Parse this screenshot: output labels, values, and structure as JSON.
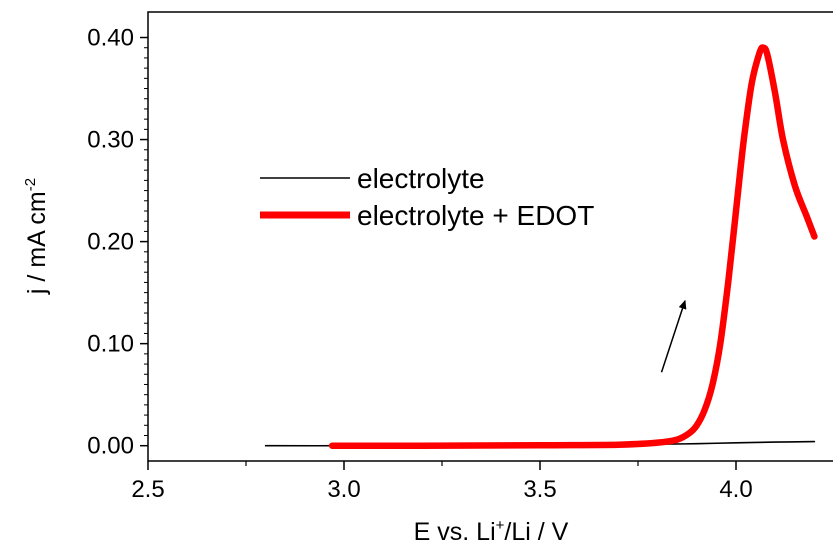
{
  "chart_data": {
    "type": "line",
    "title": "",
    "xlabel": {
      "prefix": "E vs. Li",
      "sup": "+",
      "suffix": "/Li / V"
    },
    "ylabel": {
      "prefix": "j / mA cm",
      "sup": "-2"
    },
    "xlim": [
      2.5,
      4.25
    ],
    "ylim": [
      -0.015,
      0.425
    ],
    "x_ticks": [
      2.5,
      3.0,
      3.5,
      4.0
    ],
    "x_tick_labels": [
      "2.5",
      "3.0",
      "3.5",
      "4.0"
    ],
    "y_ticks": [
      0.0,
      0.1,
      0.2,
      0.3,
      0.4
    ],
    "y_tick_labels": [
      "0.00",
      "0.10",
      "0.20",
      "0.30",
      "0.40"
    ],
    "grid": false,
    "legend_position": "center-left",
    "series": [
      {
        "name": "electrolyte",
        "color": "#000000",
        "line_style": "thin",
        "x": [
          2.8,
          3.0,
          3.2,
          3.4,
          3.6,
          3.8,
          3.9,
          4.0,
          4.1,
          4.2
        ],
        "y": [
          0.0,
          0.0,
          0.0005,
          0.0008,
          0.001,
          0.0015,
          0.002,
          0.0028,
          0.0035,
          0.004
        ]
      },
      {
        "name": "electrolyte + EDOT",
        "color": "#ff0000",
        "line_style": "thick",
        "x": [
          2.97,
          3.2,
          3.5,
          3.7,
          3.8,
          3.85,
          3.88,
          3.9,
          3.92,
          3.94,
          3.96,
          3.98,
          4.0,
          4.02,
          4.04,
          4.06,
          4.07,
          4.08,
          4.1,
          4.12,
          4.15,
          4.18,
          4.2
        ],
        "y": [
          0.0,
          0.0,
          0.0005,
          0.001,
          0.003,
          0.006,
          0.012,
          0.02,
          0.035,
          0.06,
          0.1,
          0.16,
          0.23,
          0.3,
          0.355,
          0.385,
          0.39,
          0.383,
          0.345,
          0.3,
          0.255,
          0.225,
          0.205
        ]
      }
    ],
    "annotations": [
      {
        "type": "arrow",
        "from": [
          3.81,
          0.072
        ],
        "to": [
          3.87,
          0.142
        ],
        "color": "#000000"
      }
    ]
  }
}
